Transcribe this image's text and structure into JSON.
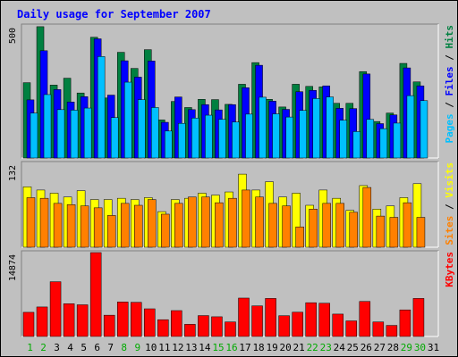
{
  "title": "Daily usage for September 2007",
  "colors": {
    "background": "#c0c0c0",
    "panel": "#c0c0c0",
    "title": "#0000ff",
    "hits": "#008040",
    "files": "#0000ff",
    "pages": "#00c0ff",
    "visits": "#ffff00",
    "sites": "#ff8000",
    "kbytes": "#ff0000",
    "weekend_day": "#00aa00",
    "weekday": "#000000"
  },
  "chart_data": {
    "type": "bar",
    "x": [
      "1",
      "2",
      "3",
      "4",
      "5",
      "6",
      "7",
      "8",
      "9",
      "10",
      "11",
      "12",
      "13",
      "14",
      "15",
      "16",
      "17",
      "18",
      "19",
      "20",
      "21",
      "22",
      "23",
      "24",
      "25",
      "26",
      "27",
      "28",
      "29",
      "30",
      "31"
    ],
    "weekend_days": [
      "1",
      "2",
      "8",
      "9",
      "15",
      "16",
      "22",
      "23",
      "29",
      "30"
    ],
    "panels": [
      {
        "name": "hits_files_pages",
        "axis_max_label": "500",
        "axis_max": 500,
        "legend": [
          {
            "text": "Pages",
            "color": "#00c0ff"
          },
          {
            "text": " / ",
            "color": "#000000"
          },
          {
            "text": "Files",
            "color": "#0000ff"
          },
          {
            "text": " / ",
            "color": "#000000"
          },
          {
            "text": "Hits",
            "color": "#008040"
          }
        ],
        "series": [
          {
            "name": "Hits",
            "color": "#008040",
            "values": [
              285,
              497,
              276,
              302,
              246,
              457,
              227,
              400,
              339,
              410,
              144,
              214,
              191,
              222,
              221,
              203,
              279,
              361,
              222,
              193,
              279,
              271,
              269,
              207,
              207,
              327,
              138,
              170,
              358,
              288,
              0
            ]
          },
          {
            "name": "Files",
            "color": "#0000ff",
            "values": [
              220,
              406,
              259,
              212,
              232,
              451,
              238,
              368,
              306,
              367,
              135,
              231,
              183,
              202,
              182,
              202,
              266,
              351,
              215,
              184,
              251,
              256,
              273,
              188,
              187,
              318,
              130,
              163,
              341,
              273,
              0
            ]
          },
          {
            "name": "Pages",
            "color": "#00c0ff",
            "values": [
              170,
              240,
              183,
              181,
              189,
              384,
              153,
              287,
              221,
              191,
              102,
              131,
              151,
              162,
              146,
              136,
              166,
              230,
              167,
              155,
              180,
              225,
              231,
              143,
              100,
              146,
              111,
              132,
              236,
              217,
              0
            ]
          }
        ]
      },
      {
        "name": "visits_sites",
        "axis_max_label": "132",
        "axis_max": 132,
        "legend": [
          {
            "text": "Sites",
            "color": "#ff8000"
          },
          {
            "text": " / ",
            "color": "#000000"
          },
          {
            "text": "Visits",
            "color": "#ffff00"
          }
        ],
        "series": [
          {
            "name": "Visits",
            "color": "#ffff00",
            "values": [
              95,
              90,
              85,
              79,
              89,
              75,
              75,
              77,
              75,
              78,
              56,
              75,
              77,
              85,
              82,
              87,
              115,
              90,
              103,
              79,
              85,
              66,
              90,
              77,
              58,
              97,
              60,
              65,
              78,
              100,
              0
            ]
          },
          {
            "name": "Sites",
            "color": "#ff8000",
            "values": [
              78,
              77,
              69,
              67,
              65,
              62,
              50,
              69,
              66,
              75,
              52,
              69,
              79,
              79,
              70,
              77,
              90,
              79,
              69,
              65,
              32,
              60,
              69,
              69,
              55,
              94,
              49,
              47,
              70,
              47,
              0
            ]
          }
        ]
      },
      {
        "name": "kbytes",
        "axis_max_label": "14874",
        "axis_max": 14874,
        "legend": [
          {
            "text": "KBytes",
            "color": "#ff0000"
          }
        ],
        "series": [
          {
            "name": "KBytes",
            "color": "#ff0000",
            "values": [
              4284,
              5234,
              9708,
              5805,
              5618,
              14874,
              3774,
              6117,
              6057,
              4905,
              2976,
              4589,
              2157,
              3706,
              3494,
              2579,
              6808,
              5425,
              6744,
              3682,
              4302,
              5986,
              5894,
              3970,
              2763,
              6211,
              2579,
              1962,
              4714,
              6744,
              0
            ]
          }
        ]
      }
    ]
  }
}
